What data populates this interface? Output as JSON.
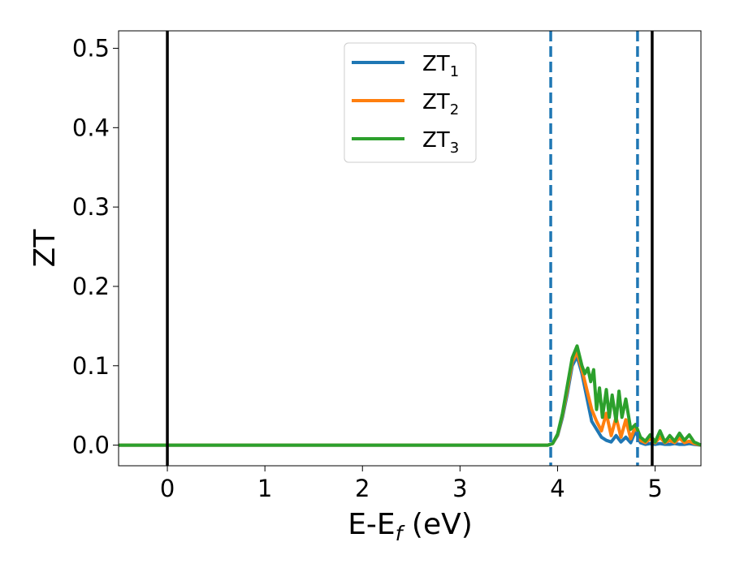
{
  "chart_data": {
    "type": "line",
    "xlabel_main": "E-E",
    "xlabel_sub": "f",
    "xlabel_tail": " (eV)",
    "ylabel": "ZT",
    "xlim": [
      -0.5,
      5.47
    ],
    "ylim": [
      -0.026,
      0.522
    ],
    "xticks": [
      0,
      1,
      2,
      3,
      4,
      5
    ],
    "yticks": [
      0.0,
      0.1,
      0.2,
      0.3,
      0.4,
      0.5
    ],
    "grid": false,
    "legend_position": "top-center",
    "vlines_solid": [
      0.0,
      4.97
    ],
    "vlines_dashed": [
      3.93,
      4.82
    ],
    "vline_solid_color": "#000000",
    "vline_dashed_color": "#1f77b4",
    "series": [
      {
        "name": "ZT",
        "sub": "1",
        "color": "#1f77b4",
        "x": [
          -0.5,
          3.9,
          3.95,
          4.0,
          4.05,
          4.1,
          4.15,
          4.2,
          4.25,
          4.3,
          4.35,
          4.4,
          4.45,
          4.5,
          4.55,
          4.6,
          4.65,
          4.7,
          4.75,
          4.8,
          4.85,
          4.9,
          4.95,
          5.0,
          5.05,
          5.1,
          5.15,
          5.2,
          5.25,
          5.3,
          5.35,
          5.4,
          5.47
        ],
        "y": [
          0.0,
          0.0,
          0.002,
          0.012,
          0.035,
          0.065,
          0.1,
          0.112,
          0.09,
          0.06,
          0.03,
          0.02,
          0.01,
          0.006,
          0.004,
          0.012,
          0.004,
          0.01,
          0.003,
          0.018,
          0.003,
          0.001,
          0.002,
          0.001,
          0.002,
          0.001,
          0.001,
          0.002,
          0.001,
          0.001,
          0.002,
          0.001,
          0.0
        ]
      },
      {
        "name": "ZT",
        "sub": "2",
        "color": "#ff7f0e",
        "x": [
          -0.5,
          3.9,
          3.95,
          4.0,
          4.05,
          4.1,
          4.15,
          4.2,
          4.25,
          4.3,
          4.35,
          4.4,
          4.45,
          4.5,
          4.55,
          4.6,
          4.65,
          4.7,
          4.75,
          4.8,
          4.85,
          4.9,
          4.95,
          5.0,
          5.05,
          5.1,
          5.15,
          5.2,
          5.25,
          5.3,
          5.35,
          5.4,
          5.47
        ],
        "y": [
          0.0,
          0.0,
          0.002,
          0.013,
          0.038,
          0.07,
          0.105,
          0.117,
          0.095,
          0.07,
          0.045,
          0.03,
          0.018,
          0.04,
          0.012,
          0.035,
          0.01,
          0.032,
          0.008,
          0.024,
          0.006,
          0.003,
          0.008,
          0.003,
          0.01,
          0.003,
          0.006,
          0.003,
          0.009,
          0.003,
          0.005,
          0.002,
          0.0
        ]
      },
      {
        "name": "ZT",
        "sub": "3",
        "color": "#2ca02c",
        "x": [
          -0.5,
          3.9,
          3.95,
          4.0,
          4.05,
          4.1,
          4.15,
          4.2,
          4.25,
          4.28,
          4.31,
          4.34,
          4.37,
          4.4,
          4.43,
          4.46,
          4.5,
          4.53,
          4.56,
          4.6,
          4.63,
          4.66,
          4.7,
          4.75,
          4.8,
          4.85,
          4.9,
          4.95,
          5.0,
          5.05,
          5.1,
          5.15,
          5.2,
          5.25,
          5.3,
          5.35,
          5.4,
          5.47
        ],
        "y": [
          0.0,
          0.0,
          0.002,
          0.014,
          0.04,
          0.075,
          0.11,
          0.125,
          0.1,
          0.09,
          0.097,
          0.08,
          0.095,
          0.045,
          0.072,
          0.035,
          0.07,
          0.035,
          0.063,
          0.03,
          0.068,
          0.035,
          0.058,
          0.02,
          0.026,
          0.01,
          0.005,
          0.013,
          0.004,
          0.018,
          0.004,
          0.012,
          0.005,
          0.015,
          0.006,
          0.013,
          0.004,
          0.0
        ]
      }
    ]
  }
}
